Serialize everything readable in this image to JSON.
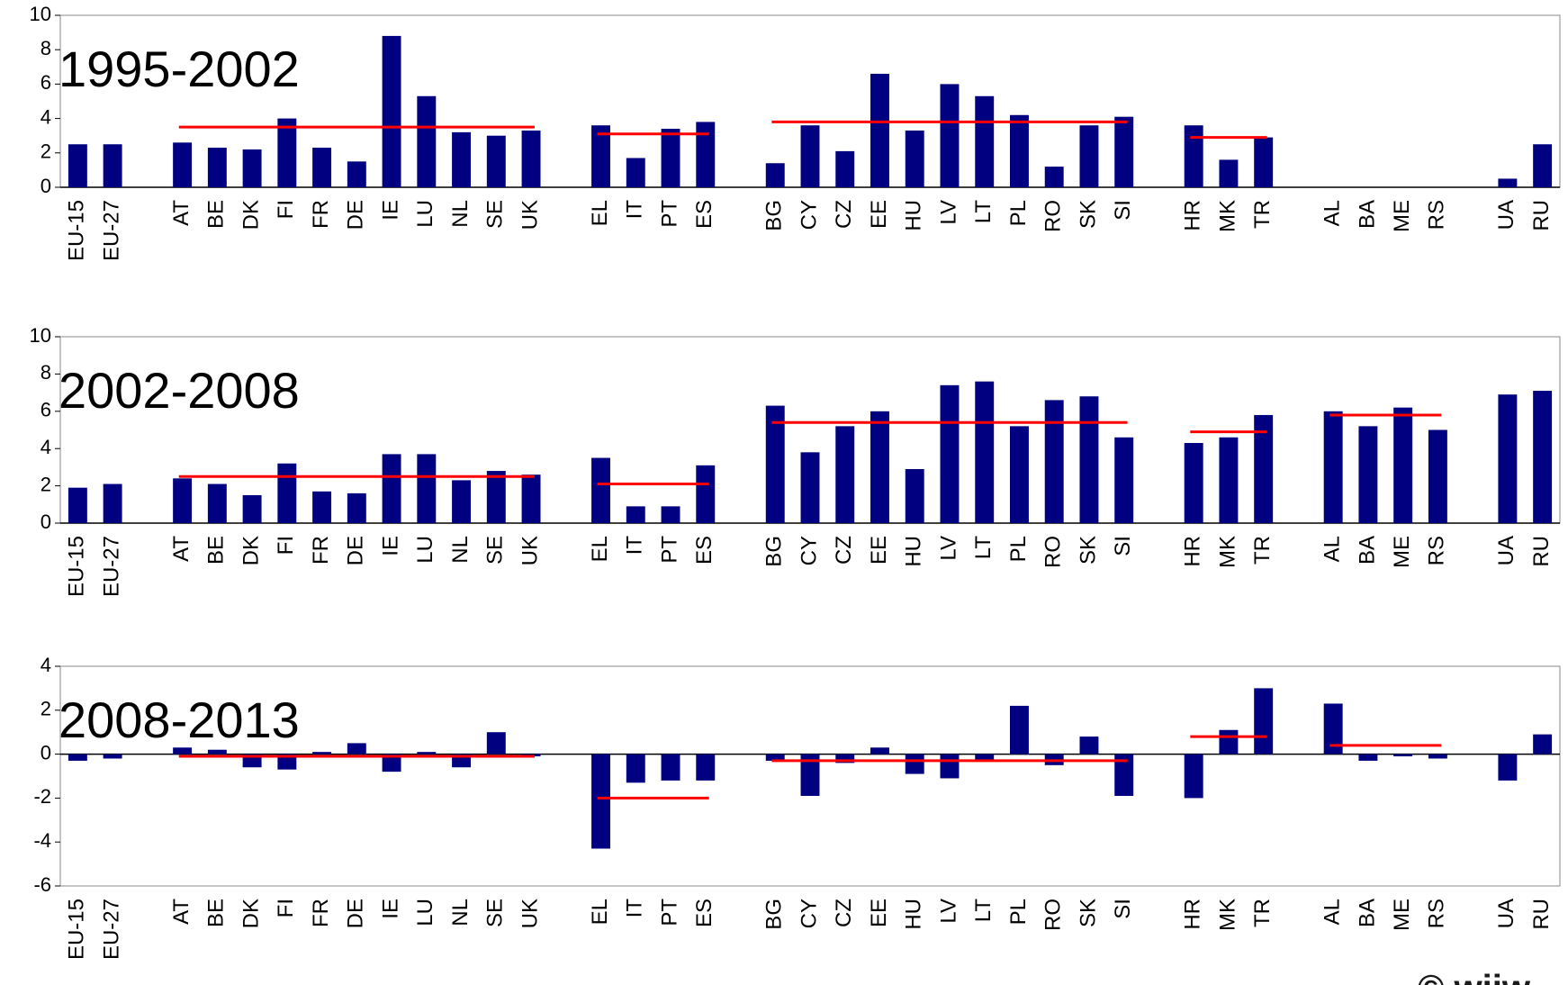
{
  "chart_data": [
    {
      "type": "bar",
      "title": "1995-2002",
      "categories": [
        "EU-15",
        "EU-27",
        null,
        "AT",
        "BE",
        "DK",
        "FI",
        "FR",
        "DE",
        "IE",
        "LU",
        "NL",
        "SE",
        "UK",
        null,
        "EL",
        "IT",
        "PT",
        "ES",
        null,
        "BG",
        "CY",
        "CZ",
        "EE",
        "HU",
        "LV",
        "LT",
        "PL",
        "RO",
        "SK",
        "SI",
        null,
        "HR",
        "MK",
        "TR",
        null,
        "AL",
        "BA",
        "ME",
        "RS",
        null,
        "UA",
        "RU"
      ],
      "series": [
        {
          "color": "#000080",
          "values": [
            2.5,
            2.5,
            null,
            2.6,
            2.3,
            2.2,
            4.0,
            2.3,
            1.5,
            8.8,
            5.3,
            3.2,
            3.0,
            3.3,
            null,
            3.6,
            1.7,
            3.4,
            3.8,
            null,
            1.4,
            3.6,
            2.1,
            6.6,
            3.3,
            6.0,
            5.3,
            4.2,
            1.2,
            3.6,
            4.1,
            null,
            3.6,
            1.6,
            2.9,
            null,
            null,
            null,
            null,
            null,
            null,
            0.5,
            2.5
          ]
        },
        {
          "type": "line",
          "color": "#ff0000",
          "values": [
            null,
            null,
            null,
            3.5,
            3.5,
            3.5,
            3.5,
            3.5,
            3.5,
            3.5,
            3.5,
            3.5,
            3.5,
            3.5,
            null,
            3.1,
            3.1,
            3.1,
            3.1,
            null,
            3.8,
            3.8,
            3.8,
            3.8,
            3.8,
            3.8,
            3.8,
            3.8,
            3.8,
            3.8,
            3.8,
            null,
            2.9,
            2.9,
            2.9,
            null,
            null,
            null,
            null,
            null,
            null,
            null,
            null
          ]
        }
      ],
      "ylim": [
        0,
        10
      ],
      "yticks": [
        0,
        2,
        4,
        6,
        8,
        10
      ]
    },
    {
      "type": "bar",
      "title": "2002-2008",
      "categories": [
        "EU-15",
        "EU-27",
        null,
        "AT",
        "BE",
        "DK",
        "FI",
        "FR",
        "DE",
        "IE",
        "LU",
        "NL",
        "SE",
        "UK",
        null,
        "EL",
        "IT",
        "PT",
        "ES",
        null,
        "BG",
        "CY",
        "CZ",
        "EE",
        "HU",
        "LV",
        "LT",
        "PL",
        "RO",
        "SK",
        "SI",
        null,
        "HR",
        "MK",
        "TR",
        null,
        "AL",
        "BA",
        "ME",
        "RS",
        null,
        "UA",
        "RU"
      ],
      "series": [
        {
          "color": "#000080",
          "values": [
            1.9,
            2.1,
            null,
            2.4,
            2.1,
            1.5,
            3.2,
            1.7,
            1.6,
            3.7,
            3.7,
            2.3,
            2.8,
            2.6,
            null,
            3.5,
            0.9,
            0.9,
            3.1,
            null,
            6.3,
            3.8,
            5.2,
            6.0,
            2.9,
            7.4,
            7.6,
            5.2,
            6.6,
            6.8,
            4.6,
            null,
            4.3,
            4.6,
            5.8,
            null,
            6.0,
            5.2,
            6.2,
            5.0,
            null,
            6.9,
            7.1
          ]
        },
        {
          "type": "line",
          "color": "#ff0000",
          "values": [
            null,
            null,
            null,
            2.5,
            2.5,
            2.5,
            2.5,
            2.5,
            2.5,
            2.5,
            2.5,
            2.5,
            2.5,
            2.5,
            null,
            2.1,
            2.1,
            2.1,
            2.1,
            null,
            5.4,
            5.4,
            5.4,
            5.4,
            5.4,
            5.4,
            5.4,
            5.4,
            5.4,
            5.4,
            5.4,
            null,
            4.9,
            4.9,
            4.9,
            null,
            5.8,
            5.8,
            5.8,
            5.8,
            null,
            null,
            null
          ]
        }
      ],
      "ylim": [
        0,
        10
      ],
      "yticks": [
        0,
        2,
        4,
        6,
        8,
        10
      ]
    },
    {
      "type": "bar",
      "title": "2008-2013",
      "categories": [
        "EU-15",
        "EU-27",
        null,
        "AT",
        "BE",
        "DK",
        "FI",
        "FR",
        "DE",
        "IE",
        "LU",
        "NL",
        "SE",
        "UK",
        null,
        "EL",
        "IT",
        "PT",
        "ES",
        null,
        "BG",
        "CY",
        "CZ",
        "EE",
        "HU",
        "LV",
        "LT",
        "PL",
        "RO",
        "SK",
        "SI",
        null,
        "HR",
        "MK",
        "TR",
        null,
        "AL",
        "BA",
        "ME",
        "RS",
        null,
        "UA",
        "RU"
      ],
      "series": [
        {
          "color": "#000080",
          "values": [
            -0.3,
            -0.2,
            null,
            0.3,
            0.2,
            -0.6,
            -0.7,
            0.1,
            0.5,
            -0.8,
            0.1,
            -0.6,
            1.0,
            -0.1,
            null,
            -4.3,
            -1.3,
            -1.2,
            -1.2,
            null,
            -0.3,
            -1.9,
            -0.4,
            0.3,
            -0.9,
            -1.1,
            -0.3,
            2.2,
            -0.5,
            0.8,
            -1.9,
            null,
            -2.0,
            1.1,
            3.0,
            null,
            2.3,
            -0.3,
            -0.1,
            -0.2,
            null,
            -1.2,
            0.9
          ]
        },
        {
          "type": "line",
          "color": "#ff0000",
          "values": [
            null,
            null,
            null,
            -0.1,
            -0.1,
            -0.1,
            -0.1,
            -0.1,
            -0.1,
            -0.1,
            -0.1,
            -0.1,
            -0.1,
            -0.1,
            null,
            -2.0,
            -2.0,
            -2.0,
            -2.0,
            null,
            -0.3,
            -0.3,
            -0.3,
            -0.3,
            -0.3,
            -0.3,
            -0.3,
            -0.3,
            -0.3,
            -0.3,
            -0.3,
            null,
            0.8,
            0.8,
            0.8,
            null,
            0.4,
            0.4,
            0.4,
            0.4,
            null,
            null,
            null
          ]
        }
      ],
      "ylim": [
        -6,
        4
      ],
      "yticks": [
        -6,
        -4,
        -2,
        0,
        2,
        4
      ],
      "annotation": "© wiiw"
    }
  ]
}
